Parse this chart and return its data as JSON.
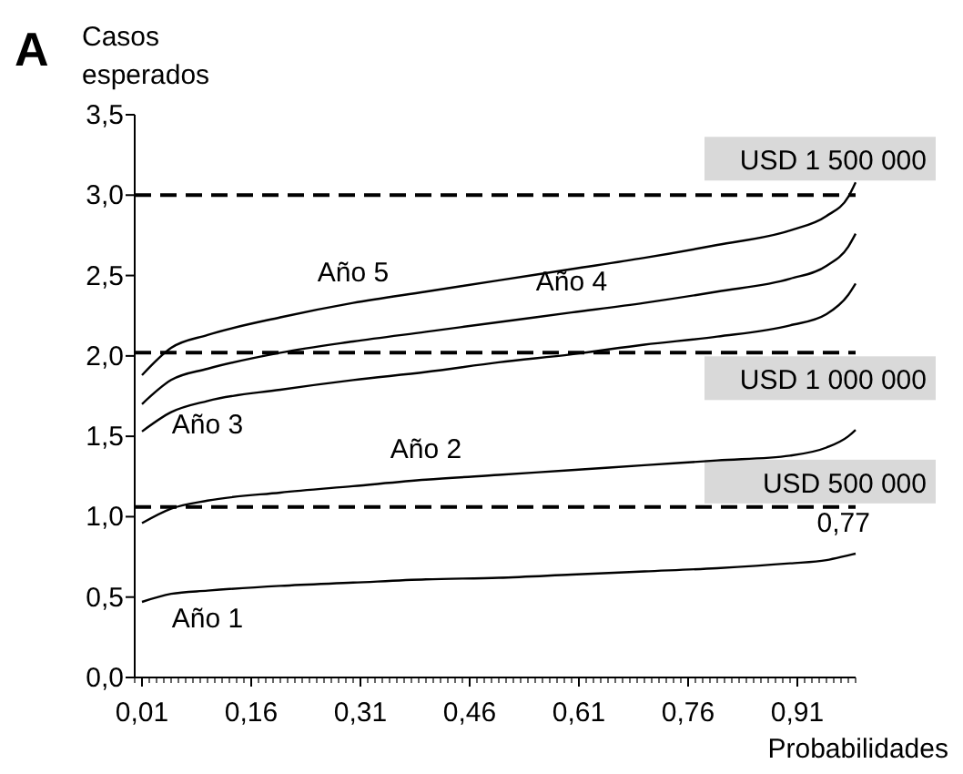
{
  "chart_data": {
    "type": "line",
    "title": "A",
    "ylabel": "Casos esperados",
    "xlabel": "Probabilidades",
    "x": [
      0.01,
      0.05,
      0.1,
      0.2,
      0.3,
      0.4,
      0.5,
      0.6,
      0.7,
      0.8,
      0.9,
      0.95,
      0.98,
      0.99
    ],
    "series": [
      {
        "name": "Año 1",
        "color": "#000000",
        "values": [
          0.47,
          0.52,
          0.54,
          0.57,
          0.59,
          0.61,
          0.62,
          0.64,
          0.66,
          0.68,
          0.71,
          0.73,
          0.76,
          0.77
        ]
      },
      {
        "name": "Año 2",
        "color": "#000000",
        "values": [
          0.96,
          1.05,
          1.1,
          1.15,
          1.19,
          1.23,
          1.26,
          1.29,
          1.32,
          1.35,
          1.38,
          1.43,
          1.5,
          1.54
        ]
      },
      {
        "name": "Año 3",
        "color": "#000000",
        "values": [
          1.53,
          1.65,
          1.72,
          1.79,
          1.85,
          1.9,
          1.96,
          2.01,
          2.07,
          2.12,
          2.19,
          2.26,
          2.38,
          2.45
        ]
      },
      {
        "name": "Año 4",
        "color": "#000000",
        "values": [
          1.7,
          1.85,
          1.92,
          2.02,
          2.09,
          2.15,
          2.21,
          2.27,
          2.33,
          2.4,
          2.48,
          2.56,
          2.68,
          2.76
        ]
      },
      {
        "name": "Año 5",
        "color": "#000000",
        "values": [
          1.88,
          2.05,
          2.13,
          2.24,
          2.33,
          2.4,
          2.47,
          2.54,
          2.61,
          2.69,
          2.78,
          2.87,
          2.99,
          3.08
        ]
      }
    ],
    "xlim": [
      0,
      0.99
    ],
    "xticks": [
      {
        "value": 0.01,
        "label": "0,01"
      },
      {
        "value": 0.16,
        "label": "0,16"
      },
      {
        "value": 0.31,
        "label": "0,31"
      },
      {
        "value": 0.46,
        "label": "0,46"
      },
      {
        "value": 0.61,
        "label": "0,61"
      },
      {
        "value": 0.76,
        "label": "0,76"
      },
      {
        "value": 0.91,
        "label": "0,91"
      }
    ],
    "ylim": [
      0,
      3.5
    ],
    "yticks": [
      {
        "value": 0,
        "label": "0,0"
      },
      {
        "value": 0.5,
        "label": "0,5"
      },
      {
        "value": 1,
        "label": "1,0"
      },
      {
        "value": 1.5,
        "label": "1,5"
      },
      {
        "value": 2,
        "label": "2,0"
      },
      {
        "value": 2.5,
        "label": "2,5"
      },
      {
        "value": 3,
        "label": "3,0"
      },
      {
        "value": 3.5,
        "label": "3,5"
      }
    ],
    "ref_lines": [
      {
        "axis": "y",
        "value": 3.0,
        "label": "USD 1 500 000",
        "color": "#000000",
        "line_style": "dashed"
      },
      {
        "axis": "y",
        "value": 2.02,
        "label": "USD 1 000 000",
        "color": "#000000",
        "line_style": "dashed"
      },
      {
        "axis": "y",
        "value": 1.06,
        "label": "USD 500 000",
        "color": "#000000",
        "line_style": "dashed"
      }
    ],
    "annotations": [
      {
        "text": "0,77",
        "x": 0.99,
        "y": 0.77
      }
    ],
    "grid": false,
    "legend": false,
    "marker": "none",
    "line_style": "solid"
  }
}
